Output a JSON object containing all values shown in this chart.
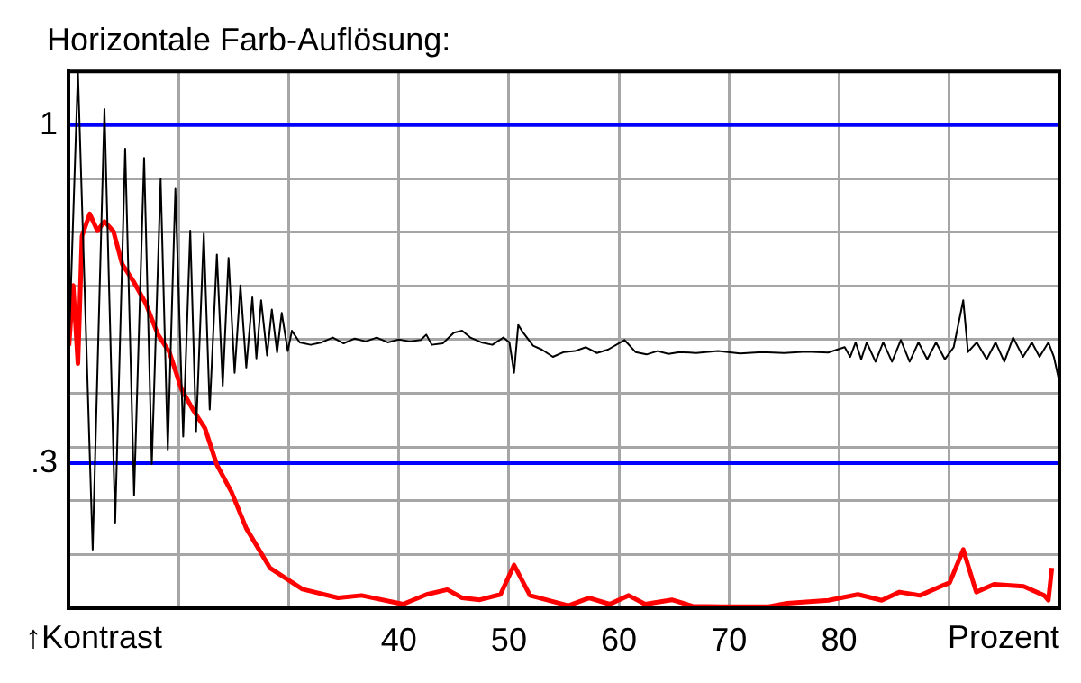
{
  "chart_data": {
    "type": "line",
    "title": "Horizontale Farb-Auflösung:",
    "xlabel": "Prozent",
    "annotations": [
      "↑Kontrast"
    ],
    "xlim": [
      10,
      100
    ],
    "ylim": [
      0,
      1.111
    ],
    "xticks": [
      {
        "value": 20,
        "label": null
      },
      {
        "value": 30,
        "label": null
      },
      40,
      50,
      60,
      70,
      80,
      {
        "value": 90,
        "label": null
      }
    ],
    "yticks": [
      {
        "value": 0.111,
        "label": null
      },
      {
        "value": 0.222,
        "label": null
      },
      {
        "value": 0.333,
        "label": null
      },
      {
        "value": 0.444,
        "label": null
      },
      {
        "value": 0.556,
        "label": null
      },
      {
        "value": 0.667,
        "label": null
      },
      {
        "value": 0.778,
        "label": null
      },
      {
        "value": 0.889,
        "label": null
      },
      {
        "value": 1,
        "label": null
      }
    ],
    "grid": true,
    "legend": false,
    "marker": "none",
    "line_style": "solid",
    "ref_lines": [
      {
        "axis": "y",
        "value": 1,
        "label": "1",
        "color": "#0000ff"
      },
      {
        "axis": "y",
        "value": 0.3,
        "label": ".3",
        "color": "#0000ff"
      }
    ],
    "series": [
      {
        "color": "#000000",
        "x": [
          10.05,
          10.86,
          12.2,
          13.27,
          14.24,
          15.15,
          15.96,
          16.87,
          17.57,
          18.37,
          19.02,
          19.71,
          20.42,
          21.06,
          21.59,
          22.29,
          22.83,
          23.48,
          24.01,
          24.54,
          25.09,
          25.62,
          26.15,
          26.7,
          27.07,
          27.5,
          28.04,
          28.47,
          28.95,
          29.37,
          29.92,
          30.29,
          31,
          32,
          33,
          34,
          35,
          36,
          37,
          38,
          39,
          40,
          41,
          42,
          42.5,
          43,
          44,
          45,
          45.75,
          46.5,
          47.5,
          48.5,
          49.5,
          50.05,
          50.47,
          50.85,
          51.3,
          52.2,
          53,
          54,
          55,
          56,
          57,
          58,
          59,
          60.5,
          61.5,
          62.5,
          63.5,
          64.5,
          65.5,
          67,
          69,
          71,
          73,
          75,
          77,
          79,
          80.5,
          81,
          81.5,
          82,
          82.5,
          83.3,
          84,
          84.8,
          85.6,
          86.4,
          87.2,
          88,
          88.8,
          89.6,
          90.4,
          91.27,
          91.7,
          92.5,
          93.4,
          94.2,
          95,
          95.8,
          96.7,
          97.5,
          98.2,
          99,
          99.5,
          100
        ],
        "values": [
          0.543,
          1.11,
          0.121,
          1.033,
          0.177,
          0.951,
          0.234,
          0.932,
          0.298,
          0.888,
          0.328,
          0.868,
          0.355,
          0.781,
          0.366,
          0.775,
          0.411,
          0.732,
          0.46,
          0.725,
          0.487,
          0.668,
          0.498,
          0.643,
          0.517,
          0.637,
          0.523,
          0.618,
          0.529,
          0.611,
          0.532,
          0.574,
          0.55,
          0.545,
          0.55,
          0.56,
          0.548,
          0.558,
          0.552,
          0.56,
          0.55,
          0.556,
          0.552,
          0.555,
          0.566,
          0.545,
          0.548,
          0.57,
          0.574,
          0.56,
          0.55,
          0.545,
          0.56,
          0.55,
          0.487,
          0.586,
          0.57,
          0.543,
          0.535,
          0.52,
          0.53,
          0.532,
          0.54,
          0.528,
          0.535,
          0.555,
          0.53,
          0.525,
          0.532,
          0.526,
          0.53,
          0.528,
          0.532,
          0.527,
          0.53,
          0.528,
          0.531,
          0.529,
          0.54,
          0.52,
          0.55,
          0.515,
          0.55,
          0.51,
          0.55,
          0.51,
          0.555,
          0.51,
          0.55,
          0.515,
          0.55,
          0.515,
          0.54,
          0.637,
          0.53,
          0.55,
          0.515,
          0.55,
          0.51,
          0.56,
          0.52,
          0.55,
          0.52,
          0.55,
          0.52,
          0.468
        ]
      },
      {
        "color": "#ff0000",
        "x": [
          10.05,
          10.43,
          10.86,
          11.23,
          11.93,
          12.63,
          13.27,
          14.08,
          14.88,
          15.96,
          17.03,
          18.11,
          19.18,
          20.25,
          21.32,
          22.4,
          23.47,
          24.81,
          26.15,
          28.3,
          31.25,
          34.48,
          36.62,
          40.39,
          42.53,
          44.41,
          45.75,
          47.36,
          49.24,
          50.47,
          51.92,
          55.41,
          57.29,
          59.16,
          60.88,
          62.38,
          64.8,
          66.68,
          69.37,
          73.6,
          75.27,
          79.03,
          81.71,
          83.86,
          85.47,
          87.34,
          89.23,
          90.03,
          91.27,
          92.45,
          94.06,
          96.75,
          98.62,
          99.0,
          99.32
        ],
        "values": [
          0.543,
          0.668,
          0.506,
          0.77,
          0.816,
          0.781,
          0.8,
          0.78,
          0.712,
          0.674,
          0.63,
          0.567,
          0.529,
          0.454,
          0.41,
          0.372,
          0.297,
          0.24,
          0.165,
          0.083,
          0.039,
          0.021,
          0.026,
          0.008,
          0.028,
          0.038,
          0.021,
          0.017,
          0.028,
          0.089,
          0.026,
          0.005,
          0.021,
          0.008,
          0.026,
          0.008,
          0.017,
          0.004,
          0.003,
          0.003,
          0.01,
          0.016,
          0.028,
          0.016,
          0.033,
          0.026,
          0.045,
          0.052,
          0.121,
          0.033,
          0.049,
          0.045,
          0.026,
          0.016,
          0.083
        ]
      }
    ]
  }
}
